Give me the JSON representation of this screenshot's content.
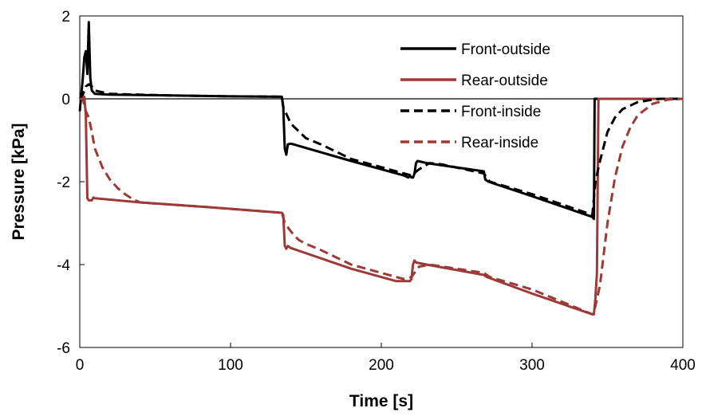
{
  "chart_data": {
    "type": "line",
    "title": "",
    "xlabel": "Time [s]",
    "ylabel": "Pressure [kPa]",
    "xlim": [
      0,
      400
    ],
    "ylim": [
      -6,
      2
    ],
    "x_ticks": [
      0,
      100,
      200,
      300,
      400
    ],
    "y_ticks": [
      2,
      0,
      -2,
      -4,
      -6
    ],
    "grid": false,
    "legend_position": "top-right",
    "series": [
      {
        "name": "Front-outside",
        "color": "#000000",
        "style": "solid",
        "points": [
          [
            0,
            -0.3
          ],
          [
            1,
            0.1
          ],
          [
            2,
            0.5
          ],
          [
            3,
            1.0
          ],
          [
            4,
            1.15
          ],
          [
            5,
            0.6
          ],
          [
            6,
            1.85
          ],
          [
            7,
            0.5
          ],
          [
            8,
            0.2
          ],
          [
            10,
            0.12
          ],
          [
            20,
            0.1
          ],
          [
            60,
            0.08
          ],
          [
            100,
            0.06
          ],
          [
            134,
            0.05
          ],
          [
            135,
            -0.2
          ],
          [
            136,
            -1.2
          ],
          [
            137,
            -1.35
          ],
          [
            138,
            -1.1
          ],
          [
            140,
            -1.08
          ],
          [
            180,
            -1.5
          ],
          [
            215,
            -1.85
          ],
          [
            218,
            -1.9
          ],
          [
            219,
            -1.85
          ],
          [
            220,
            -1.9
          ],
          [
            221,
            -1.9
          ],
          [
            222,
            -1.8
          ],
          [
            223,
            -1.55
          ],
          [
            224,
            -1.5
          ],
          [
            230,
            -1.55
          ],
          [
            268,
            -1.75
          ],
          [
            269,
            -1.95
          ],
          [
            271,
            -2.0
          ],
          [
            300,
            -2.35
          ],
          [
            340,
            -2.85
          ],
          [
            341,
            -2.9
          ],
          [
            341.5,
            0.0
          ],
          [
            400,
            0.0
          ]
        ]
      },
      {
        "name": "Rear-outside",
        "color": "#9b3a36",
        "style": "solid",
        "points": [
          [
            0,
            0.0
          ],
          [
            3,
            0.05
          ],
          [
            4,
            -0.4
          ],
          [
            5,
            -2.4
          ],
          [
            6,
            -2.45
          ],
          [
            8,
            -2.45
          ],
          [
            9,
            -2.38
          ],
          [
            10,
            -2.4
          ],
          [
            40,
            -2.5
          ],
          [
            80,
            -2.6
          ],
          [
            134,
            -2.75
          ],
          [
            135,
            -2.8
          ],
          [
            136,
            -3.55
          ],
          [
            137,
            -3.62
          ],
          [
            138,
            -3.55
          ],
          [
            140,
            -3.6
          ],
          [
            180,
            -4.1
          ],
          [
            210,
            -4.4
          ],
          [
            219,
            -4.4
          ],
          [
            220,
            -4.35
          ],
          [
            221,
            -4.0
          ],
          [
            222,
            -3.9
          ],
          [
            223,
            -3.95
          ],
          [
            230,
            -4.0
          ],
          [
            268,
            -4.25
          ],
          [
            270,
            -4.3
          ],
          [
            300,
            -4.7
          ],
          [
            340,
            -5.2
          ],
          [
            341,
            -5.2
          ],
          [
            342,
            -4.8
          ],
          [
            343,
            -4.2
          ],
          [
            344,
            0.0
          ],
          [
            400,
            0.0
          ]
        ]
      },
      {
        "name": "Front-inside",
        "color": "#000000",
        "style": "dashed",
        "points": [
          [
            0,
            0.0
          ],
          [
            2,
            0.1
          ],
          [
            4,
            0.3
          ],
          [
            6,
            0.35
          ],
          [
            8,
            0.3
          ],
          [
            10,
            0.2
          ],
          [
            20,
            0.12
          ],
          [
            60,
            0.08
          ],
          [
            100,
            0.06
          ],
          [
            134,
            0.05
          ],
          [
            135,
            -0.2
          ],
          [
            140,
            -0.6
          ],
          [
            150,
            -0.95
          ],
          [
            160,
            -1.1
          ],
          [
            180,
            -1.45
          ],
          [
            215,
            -1.8
          ],
          [
            220,
            -1.85
          ],
          [
            225,
            -1.7
          ],
          [
            232,
            -1.55
          ],
          [
            240,
            -1.58
          ],
          [
            268,
            -1.8
          ],
          [
            272,
            -2.0
          ],
          [
            300,
            -2.3
          ],
          [
            340,
            -2.8
          ],
          [
            342,
            -2.0
          ],
          [
            345,
            -1.5
          ],
          [
            350,
            -0.8
          ],
          [
            355,
            -0.45
          ],
          [
            360,
            -0.25
          ],
          [
            370,
            -0.08
          ],
          [
            380,
            -0.02
          ],
          [
            385,
            0.0
          ],
          [
            400,
            0.0
          ]
        ]
      },
      {
        "name": "Rear-inside",
        "color": "#9b3a36",
        "style": "dashed",
        "points": [
          [
            0,
            0.0
          ],
          [
            2,
            0.0
          ],
          [
            4,
            -0.3
          ],
          [
            6,
            -0.45
          ],
          [
            8,
            -0.8
          ],
          [
            10,
            -1.2
          ],
          [
            15,
            -1.65
          ],
          [
            20,
            -1.95
          ],
          [
            25,
            -2.15
          ],
          [
            30,
            -2.3
          ],
          [
            35,
            -2.42
          ],
          [
            40,
            -2.5
          ],
          [
            80,
            -2.6
          ],
          [
            134,
            -2.75
          ],
          [
            136,
            -3.0
          ],
          [
            140,
            -3.2
          ],
          [
            145,
            -3.4
          ],
          [
            150,
            -3.5
          ],
          [
            160,
            -3.65
          ],
          [
            180,
            -4.0
          ],
          [
            215,
            -4.35
          ],
          [
            220,
            -4.3
          ],
          [
            225,
            -4.05
          ],
          [
            232,
            -4.0
          ],
          [
            268,
            -4.2
          ],
          [
            272,
            -4.3
          ],
          [
            300,
            -4.6
          ],
          [
            340,
            -5.2
          ],
          [
            342,
            -5.0
          ],
          [
            345,
            -4.5
          ],
          [
            350,
            -3.0
          ],
          [
            355,
            -1.9
          ],
          [
            360,
            -1.15
          ],
          [
            365,
            -0.7
          ],
          [
            370,
            -0.4
          ],
          [
            380,
            -0.12
          ],
          [
            390,
            -0.02
          ],
          [
            400,
            0.0
          ]
        ]
      }
    ]
  }
}
